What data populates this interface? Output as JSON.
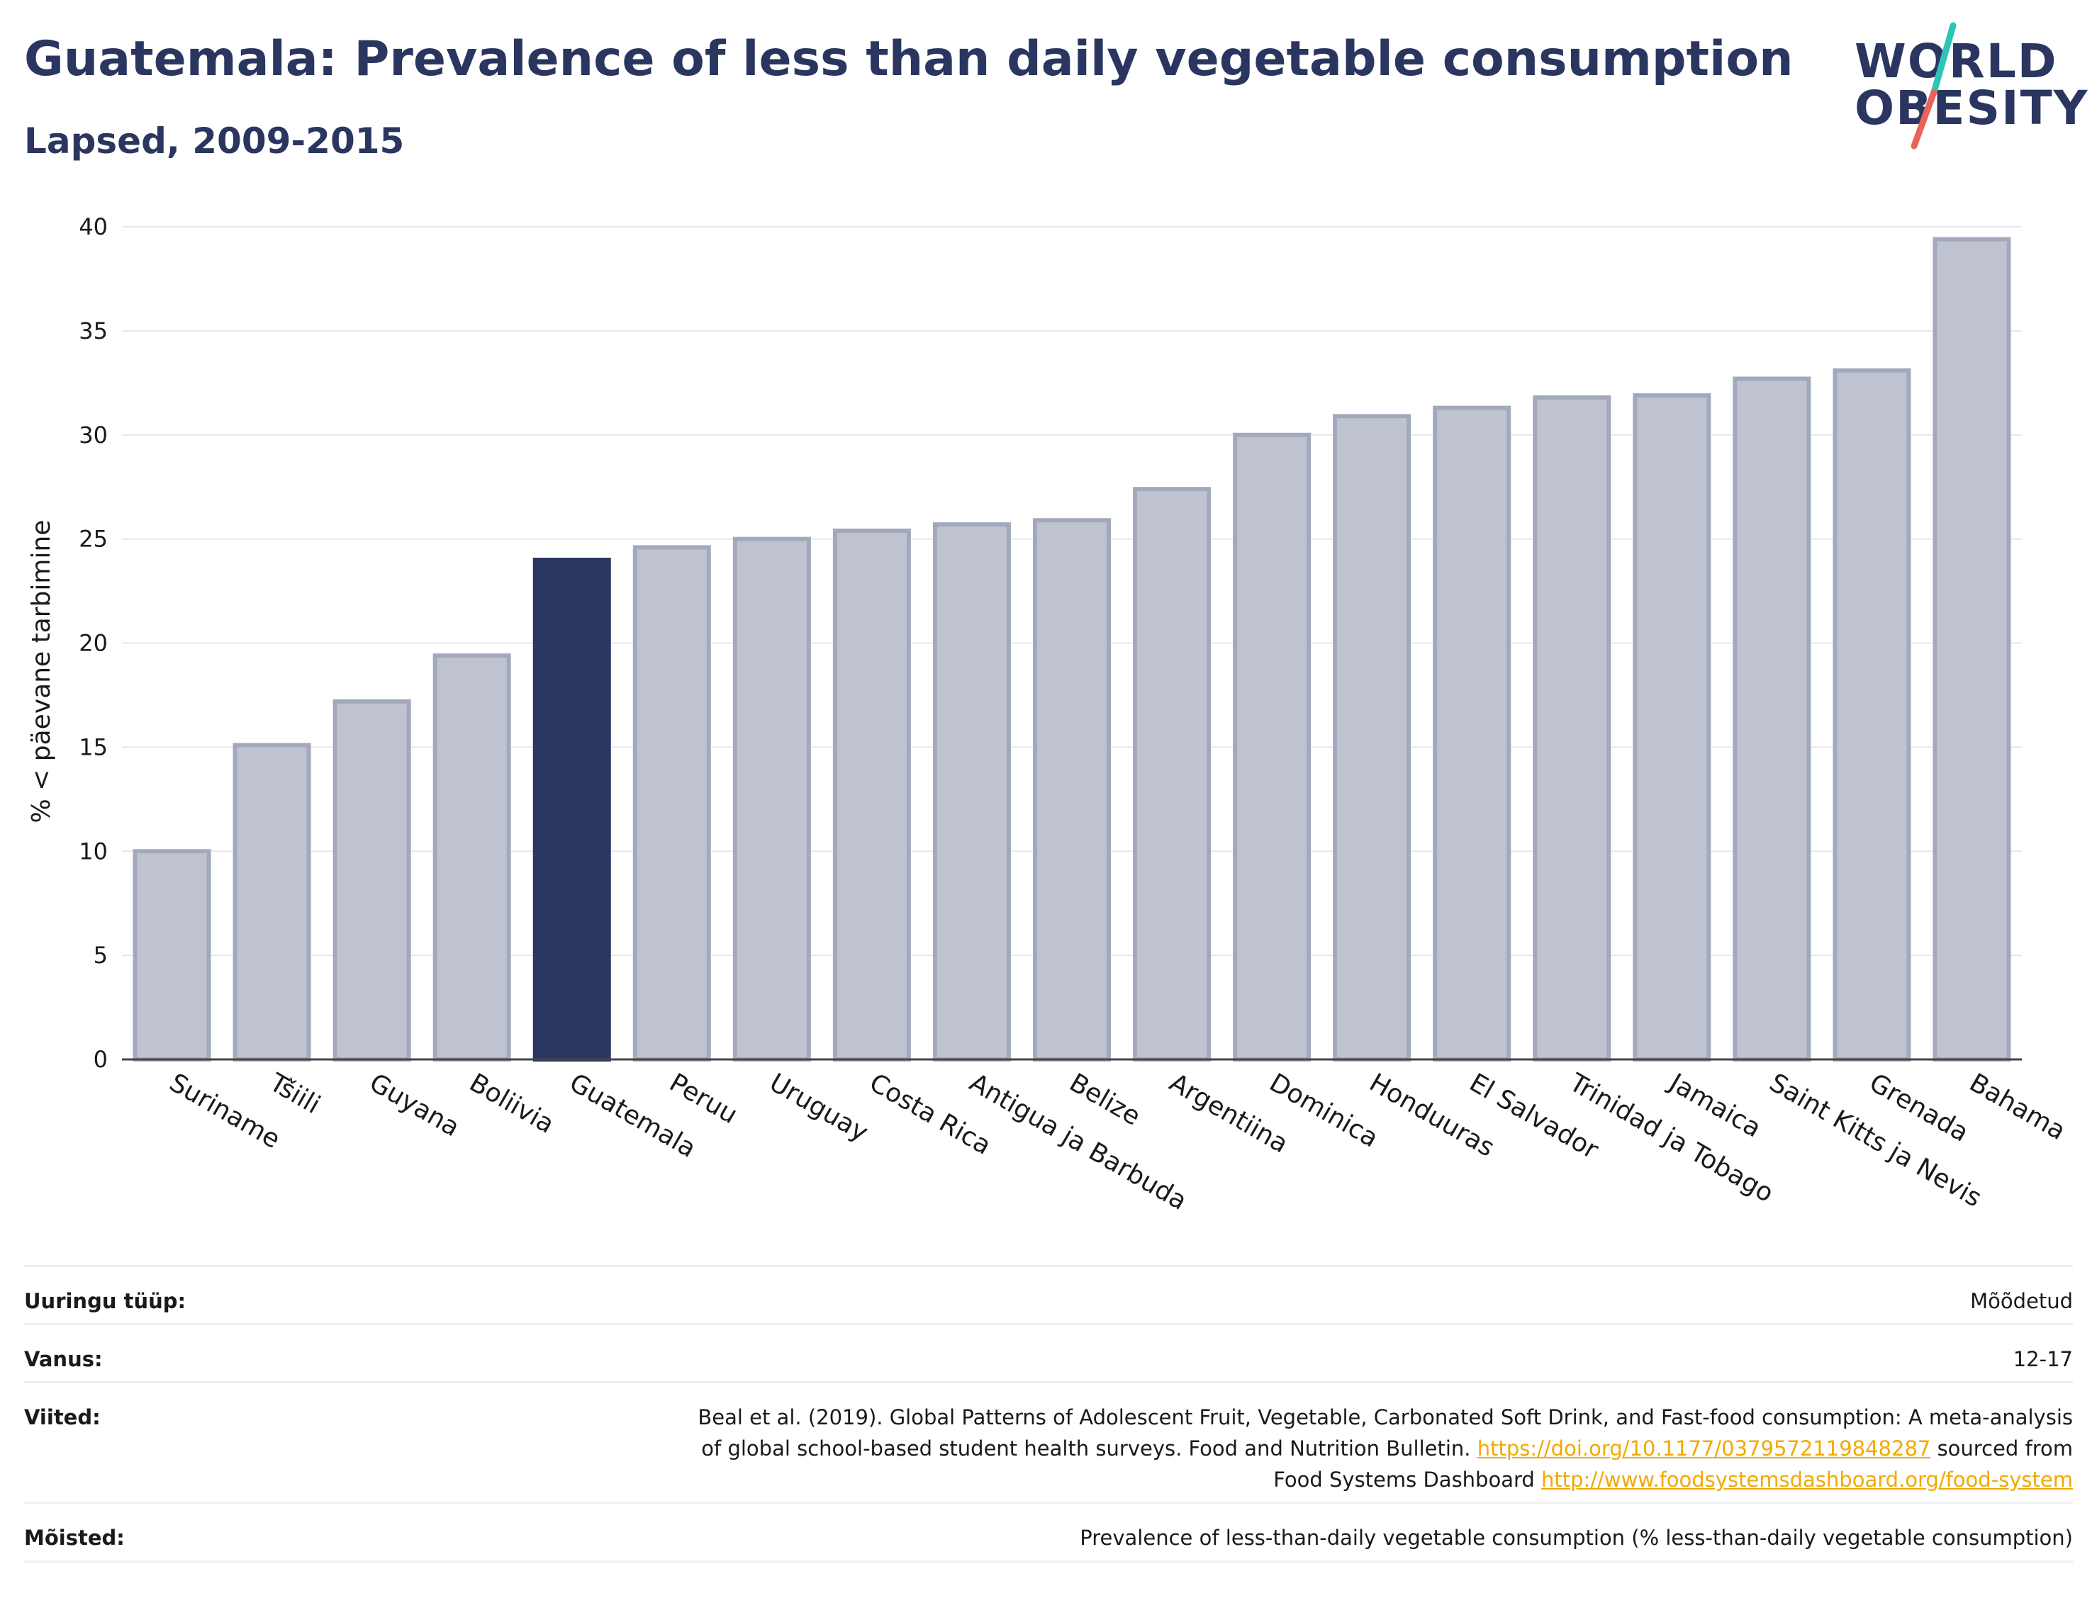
{
  "header": {
    "title": "Guatemala: Prevalence of less than daily vegetable consumption",
    "subtitle": "Lapsed, 2009-2015"
  },
  "logo": {
    "line1": "WORLD",
    "line2": "OBESITY",
    "colors": {
      "text": "#2b3660",
      "slash_top": "#2ec4b6",
      "slash_bottom": "#e8645a"
    }
  },
  "chart_data": {
    "type": "bar",
    "title": "",
    "xlabel": "",
    "ylabel": "% < päevane tarbimine",
    "ylim": [
      0,
      40
    ],
    "yticks": [
      0,
      5,
      10,
      15,
      20,
      25,
      30,
      35,
      40
    ],
    "grid": true,
    "highlight": "Guatemala",
    "colors": {
      "default_bar": "#bfc3d0",
      "default_border": "#a3a9bd",
      "highlight_bar": "#2b3660",
      "axis": "#444444",
      "grid": "#e6e8ee"
    },
    "categories": [
      "Suriname",
      "Tšiili",
      "Guyana",
      "Boliivia",
      "Guatemala",
      "Peruu",
      "Uruguay",
      "Costa Rica",
      "Antigua ja Barbuda",
      "Belize",
      "Argentiina",
      "Dominica",
      "Honduuras",
      "El Salvador",
      "Trinidad ja Tobago",
      "Jamaica",
      "Saint Kitts ja Nevis",
      "Grenada",
      "Bahama"
    ],
    "values": [
      10.0,
      15.1,
      17.2,
      19.4,
      24.0,
      24.6,
      25.0,
      25.4,
      25.7,
      25.9,
      27.4,
      30.0,
      30.9,
      31.3,
      31.8,
      31.9,
      32.7,
      33.1,
      39.4
    ]
  },
  "meta": {
    "rows": [
      {
        "label": "Uuringu tüüp:",
        "value": "Mõõdetud"
      },
      {
        "label": "Vanus:",
        "value": "12-17"
      }
    ],
    "references": {
      "label": "Viited:",
      "line1": "Beal et al. (2019). Global Patterns of Adolescent Fruit, Vegetable, Carbonated Soft Drink, and Fast-food consumption: A meta-analysis",
      "line2_text": "of global school-based student health surveys. Food and Nutrition Bulletin. ",
      "doi_link": "https://doi.org/10.1177/0379572119848287",
      "line2_tail": " sourced from",
      "line3_text": "Food Systems Dashboard ",
      "dashboard_link": "http://www.foodsystemsdashboard.org/food-system"
    },
    "definitions": {
      "label": "Mõisted:",
      "value": "Prevalence of less-than-daily vegetable consumption (% less-than-daily vegetable consumption)"
    }
  }
}
